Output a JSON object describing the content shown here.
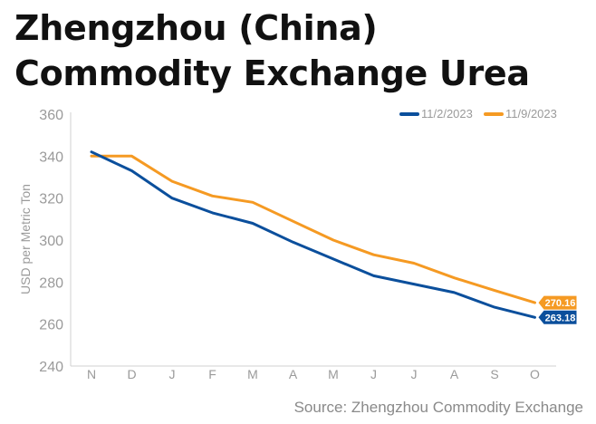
{
  "title": "Zhengzhou (China) Commodity Exchange Urea",
  "source": "Source: Zhengzhou Commodity Exchange",
  "chart_data": {
    "type": "line",
    "title": "Zhengzhou (China) Commodity Exchange Urea",
    "xlabel": "",
    "ylabel": "USD per Metric Ton",
    "categories": [
      "N",
      "D",
      "J",
      "F",
      "M",
      "A",
      "M",
      "J",
      "J",
      "A",
      "S",
      "O"
    ],
    "ylim": [
      240,
      360
    ],
    "yticks": [
      240,
      260,
      280,
      300,
      320,
      340,
      360
    ],
    "grid": false,
    "legend_position": "top-right",
    "series": [
      {
        "name": "11/2/2023",
        "color": "#0b4f9c",
        "values": [
          342,
          333,
          320,
          313,
          308,
          299,
          291,
          283,
          279,
          275,
          268,
          263.18
        ],
        "end_label": "263.18"
      },
      {
        "name": "11/9/2023",
        "color": "#f59a23",
        "values": [
          340,
          340,
          328,
          321,
          318,
          309,
          300,
          293,
          289,
          282,
          276,
          270.16
        ],
        "end_label": "270.16"
      }
    ]
  }
}
